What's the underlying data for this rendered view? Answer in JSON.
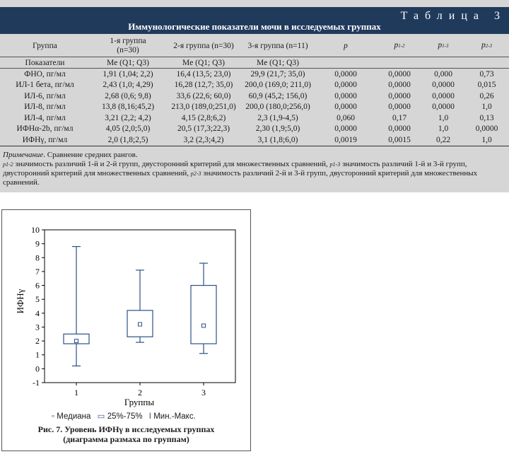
{
  "table": {
    "label": "Таблица 3",
    "title": "Иммунологические показатели мочи в исследуемых группах",
    "header": {
      "group": "Группа",
      "g1_a": "1-я группа",
      "g1_b": "(n=30)",
      "g2": "2-я группа (n=30)",
      "g3": "3-я группа (n=11)",
      "p": "p",
      "p12": "p",
      "p12_sub": "1-2",
      "p13": "p",
      "p13_sub": "1-3",
      "p23": "p",
      "p23_sub": "2-3",
      "indicators": "Показатели",
      "me1": "Me (Q1; Q3)",
      "me2": "Me (Q1; Q3)",
      "me3": "Me (Q1; Q3)"
    },
    "rows": [
      {
        "name": "ФНО, пг/мл",
        "g1": "1,91 (1,04; 2,2)",
        "g2": "16,4 (13,5; 23,0)",
        "g3": "29,9 (21,7; 35,0)",
        "p": "0,0000",
        "p12": "0,0000",
        "p13": "0,000",
        "p23": "0,73"
      },
      {
        "name": "ИЛ-1 бета, пг/мл",
        "g1": "2,43 (1,0; 4,29)",
        "g2": "16,28 (12,7; 35,0)",
        "g3": "200,0 (169,0; 211,0)",
        "p": "0,0000",
        "p12": "0,0000",
        "p13": "0,0000",
        "p23": "0,015"
      },
      {
        "name": "ИЛ-6, пг/мл",
        "g1": "2,68 (0,6; 9,8)",
        "g2": "33,6 (22,6; 60,0)",
        "g3": "60,9 (45,2; 156,0)",
        "p": "0,0000",
        "p12": "0,0000",
        "p13": "0,0000",
        "p23": "0,26"
      },
      {
        "name": "ИЛ-8, пг/мл",
        "g1": "13,8 (8,16;45,2)",
        "g2": "213,0 (189,0;251,0)",
        "g3": "200,0 (180,0;256,0)",
        "p": "0,0000",
        "p12": "0,0000",
        "p13": "0,0000",
        "p23": "1,0"
      },
      {
        "name": "ИЛ-4, пг/мл",
        "g1": "3,21 (2,2; 4,2)",
        "g2": "4,15 (2,8;6,2)",
        "g3": "2,3 (1,9-4,5)",
        "p": "0,060",
        "p12": "0,17",
        "p13": "1,0",
        "p23": "0,13"
      },
      {
        "name": "ИФНα-2b, пг/мл",
        "g1": "4,05 (2,0;5,0)",
        "g2": "20,5 (17,3;22,3)",
        "g3": "2,30 (1,9;5,0)",
        "p": "0,0000",
        "p12": "0,0000",
        "p13": "1,0",
        "p23": "0,0000"
      },
      {
        "name": "ИФНγ, пг/мл",
        "g1": "2,0 (1,8;2,5)",
        "g2": "3,2 (2,3;4,2)",
        "g3": "3,1 (1,8;6,0)",
        "p": "0,0019",
        "p12": "0,0015",
        "p13": "0,22",
        "p23": "1,0"
      }
    ],
    "notes": {
      "title": "Примечание",
      "title_rest": ". Сравнение средних рангов.",
      "p12_sym": "p1-2",
      "p12_text": " значимость различий 1-й и 2-й групп, двусторонний критерий для множественных сравнений, ",
      "p13_sym": "p1-3",
      "p13_text": " значимость различий 1-й и 3-й групп, двусторонний критерий для множественных сравнений, ",
      "p23_sym": "p2-3",
      "p23_text": " значимость различий 2-й и 3-й групп, двусторонний критерий для множественных сравнений."
    }
  },
  "figure": {
    "caption_line1": "Рис. 7. Уровень ИФНγ в исследуемых группах",
    "caption_line2": "(диаграмма размаха по группам)",
    "legend": {
      "median_sym": "▫",
      "median": "Медиана",
      "iqr_sym": "▭",
      "iqr": "25%-75%",
      "range_sym": "Ι",
      "range": "Мин.-Макс."
    }
  },
  "chart_data": {
    "type": "box",
    "title": "",
    "xlabel": "Группы",
    "ylabel": "ИФНγ",
    "categories": [
      "1",
      "2",
      "3"
    ],
    "ylim": [
      -1,
      10
    ],
    "yticks": [
      -1,
      0,
      1,
      2,
      3,
      4,
      5,
      6,
      7,
      8,
      9,
      10
    ],
    "boxes": [
      {
        "category": "1",
        "min": 0.2,
        "q1": 1.8,
        "median": 2.0,
        "q3": 2.5,
        "max": 8.8
      },
      {
        "category": "2",
        "min": 1.9,
        "q1": 2.3,
        "median": 3.2,
        "q3": 4.2,
        "max": 7.1
      },
      {
        "category": "3",
        "min": 1.1,
        "q1": 1.8,
        "median": 3.1,
        "q3": 6.0,
        "max": 7.6
      }
    ],
    "colors": {
      "box": "#2c4f8a",
      "axis": "#000000"
    }
  }
}
